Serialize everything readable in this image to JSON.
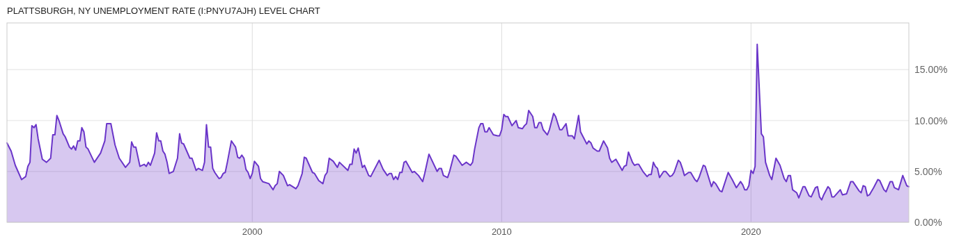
{
  "chart_data": {
    "type": "area",
    "title": "PLATTSBURGH, NY UNEMPLOYMENT RATE (I:PNYU7AJH) LEVEL CHART",
    "x": [
      "1990-03",
      "1990-05",
      "1990-07",
      "1990-10",
      "1990-12",
      "1991-01",
      "1991-02",
      "1991-03",
      "1991-04",
      "1991-05",
      "1991-06",
      "1991-08",
      "1991-10",
      "1991-12",
      "1992-01",
      "1992-02",
      "1992-03",
      "1992-04",
      "1992-06",
      "1992-07",
      "1992-09",
      "1992-10",
      "1992-11",
      "1992-12",
      "1993-01",
      "1993-02",
      "1993-03",
      "1993-04",
      "1993-05",
      "1993-06",
      "1993-09",
      "1993-12",
      "1994-02",
      "1994-03",
      "1994-05",
      "1994-07",
      "1994-09",
      "1994-12",
      "1995-02",
      "1995-03",
      "1995-04",
      "1995-05",
      "1995-07",
      "1995-09",
      "1995-10",
      "1995-11",
      "1995-12",
      "1996-02",
      "1996-03",
      "1996-04",
      "1996-05",
      "1996-06",
      "1996-07",
      "1996-08",
      "1996-09",
      "1996-11",
      "1997-01",
      "1997-02",
      "1997-03",
      "1997-04",
      "1997-07",
      "1997-08",
      "1997-10",
      "1997-11",
      "1998-01",
      "1998-02",
      "1998-03",
      "1998-04",
      "1998-05",
      "1998-06",
      "1998-07",
      "1998-09",
      "1998-10",
      "1998-11",
      "1998-12",
      "1999-01",
      "1999-03",
      "1999-04",
      "1999-05",
      "1999-06",
      "1999-07",
      "1999-08",
      "1999-09",
      "1999-10",
      "1999-11",
      "1999-12",
      "2000-01",
      "2000-02",
      "2000-04",
      "2000-05",
      "2000-06",
      "2000-09",
      "2000-10",
      "2000-11",
      "2000-12",
      "2001-01",
      "2001-02",
      "2001-04",
      "2001-06",
      "2001-07",
      "2001-10",
      "2001-11",
      "2002-01",
      "2002-02",
      "2002-03",
      "2002-06",
      "2002-07",
      "2002-09",
      "2002-11",
      "2002-12",
      "2003-01",
      "2003-02",
      "2003-04",
      "2003-06",
      "2003-07",
      "2003-11",
      "2003-12",
      "2004-01",
      "2004-02",
      "2004-03",
      "2004-04",
      "2004-06",
      "2004-07",
      "2004-09",
      "2004-10",
      "2005-02",
      "2005-04",
      "2005-06",
      "2005-07",
      "2005-08",
      "2005-09",
      "2005-10",
      "2005-11",
      "2005-12",
      "2006-01",
      "2006-02",
      "2006-03",
      "2006-06",
      "2006-07",
      "2006-09",
      "2006-11",
      "2006-12",
      "2007-02",
      "2007-06",
      "2007-07",
      "2007-08",
      "2007-09",
      "2007-11",
      "2007-12",
      "2008-02",
      "2008-03",
      "2008-06",
      "2008-08",
      "2008-10",
      "2008-11",
      "2008-12",
      "2009-02",
      "2009-03",
      "2009-04",
      "2009-05",
      "2009-06",
      "2009-07",
      "2009-09",
      "2009-11",
      "2009-12",
      "2010-01",
      "2010-02",
      "2010-03",
      "2010-04",
      "2010-06",
      "2010-08",
      "2010-09",
      "2010-11",
      "2010-12",
      "2011-01",
      "2011-02",
      "2011-04",
      "2011-05",
      "2011-06",
      "2011-07",
      "2011-08",
      "2011-09",
      "2011-11",
      "2011-12",
      "2012-02",
      "2012-03",
      "2012-05",
      "2012-06",
      "2012-08",
      "2012-09",
      "2012-11",
      "2012-12",
      "2013-02",
      "2013-03",
      "2013-06",
      "2013-07",
      "2013-08",
      "2013-09",
      "2013-11",
      "2013-12",
      "2014-02",
      "2014-04",
      "2014-05",
      "2014-06",
      "2014-08",
      "2014-11",
      "2014-12",
      "2015-01",
      "2015-02",
      "2015-04",
      "2015-05",
      "2015-06",
      "2015-07",
      "2015-09",
      "2015-11",
      "2015-12",
      "2016-01",
      "2016-02",
      "2016-03",
      "2016-04",
      "2016-05",
      "2016-07",
      "2016-08",
      "2016-10",
      "2016-11",
      "2016-12",
      "2017-02",
      "2017-03",
      "2017-04",
      "2017-05",
      "2017-07",
      "2017-08",
      "2017-10",
      "2017-11",
      "2017-12",
      "2018-02",
      "2018-03",
      "2018-06",
      "2018-07",
      "2018-08",
      "2018-10",
      "2018-11",
      "2019-02",
      "2019-04",
      "2019-06",
      "2019-08",
      "2019-09",
      "2019-10",
      "2019-11",
      "2019-12",
      "2020-01",
      "2020-02",
      "2020-03",
      "2020-04",
      "2020-06",
      "2020-07",
      "2020-08",
      "2020-10",
      "2020-11",
      "2021-01",
      "2021-03",
      "2021-05",
      "2021-06",
      "2021-07",
      "2021-08",
      "2021-09",
      "2021-11",
      "2021-12",
      "2022-02",
      "2022-03",
      "2022-05",
      "2022-06",
      "2022-08",
      "2022-09",
      "2022-10",
      "2022-11",
      "2022-12",
      "2023-02",
      "2023-03",
      "2023-04",
      "2023-05",
      "2023-08",
      "2023-09",
      "2023-11",
      "2024-01",
      "2024-02",
      "2024-05",
      "2024-06",
      "2024-07",
      "2024-08",
      "2024-09",
      "2024-10",
      "2024-12",
      "2025-02",
      "2025-03",
      "2025-05",
      "2025-06",
      "2025-08",
      "2025-09",
      "2025-10",
      "2025-12",
      "2026-02",
      "2026-04",
      "2026-05"
    ],
    "series": [
      {
        "color": "#6a35c9",
        "values": [
          7.8,
          7.0,
          5.6,
          4.2,
          4.5,
          5.5,
          5.9,
          9.5,
          9.3,
          9.6,
          8.2,
          6.2,
          5.9,
          6.3,
          8.6,
          8.6,
          10.5,
          10.0,
          8.7,
          8.4,
          7.4,
          7.2,
          7.5,
          7.1,
          8.0,
          8.0,
          9.3,
          8.9,
          7.4,
          7.2,
          5.9,
          6.8,
          8.0,
          9.7,
          9.7,
          7.6,
          6.3,
          5.4,
          5.9,
          7.9,
          7.4,
          7.4,
          5.5,
          5.7,
          5.5,
          5.9,
          5.6,
          6.8,
          8.8,
          8.0,
          8.0,
          7.0,
          6.7,
          5.9,
          4.8,
          5.0,
          6.3,
          8.7,
          7.8,
          7.7,
          6.3,
          6.3,
          5.1,
          5.3,
          5.1,
          5.9,
          9.6,
          7.4,
          7.4,
          5.3,
          4.9,
          4.3,
          4.4,
          4.8,
          4.9,
          5.9,
          8.0,
          7.7,
          7.4,
          6.4,
          6.3,
          6.6,
          6.3,
          5.2,
          4.9,
          4.3,
          4.8,
          6.0,
          5.5,
          4.3,
          4.0,
          3.8,
          3.5,
          3.2,
          3.6,
          3.8,
          5.0,
          4.6,
          3.6,
          3.7,
          3.3,
          3.6,
          4.8,
          6.4,
          6.3,
          4.9,
          4.8,
          4.1,
          3.8,
          4.6,
          4.9,
          6.3,
          6.0,
          5.4,
          5.9,
          5.1,
          5.7,
          5.7,
          7.2,
          6.8,
          7.3,
          5.4,
          5.6,
          4.6,
          4.5,
          6.1,
          5.2,
          4.6,
          4.8,
          4.8,
          4.2,
          4.5,
          4.2,
          4.9,
          4.9,
          5.9,
          6.0,
          4.9,
          5.0,
          4.6,
          4.0,
          4.8,
          6.7,
          5.0,
          5.3,
          5.3,
          4.6,
          4.4,
          5.0,
          6.6,
          6.5,
          5.6,
          5.9,
          5.6,
          5.9,
          7.2,
          9.3,
          9.7,
          9.7,
          8.9,
          8.9,
          9.3,
          8.6,
          8.5,
          8.5,
          9.1,
          10.6,
          10.4,
          10.4,
          9.5,
          10.0,
          9.3,
          9.2,
          9.5,
          9.7,
          11.0,
          10.4,
          9.3,
          9.3,
          9.8,
          9.8,
          9.1,
          8.6,
          9.1,
          10.7,
          10.4,
          9.1,
          9.1,
          9.7,
          8.5,
          8.5,
          8.2,
          10.5,
          8.9,
          7.7,
          8.0,
          7.8,
          7.3,
          7.0,
          7.0,
          8.0,
          7.3,
          6.3,
          5.9,
          6.2,
          5.1,
          5.5,
          5.6,
          6.9,
          5.9,
          5.6,
          5.7,
          5.7,
          5.0,
          4.5,
          4.7,
          4.7,
          5.9,
          5.5,
          5.3,
          4.4,
          5.0,
          5.0,
          4.5,
          4.6,
          4.9,
          6.1,
          5.9,
          5.3,
          4.6,
          4.9,
          4.9,
          4.2,
          4.0,
          4.4,
          5.6,
          5.5,
          3.5,
          4.0,
          3.8,
          3.1,
          3.0,
          4.9,
          4.2,
          3.4,
          4.0,
          3.7,
          3.2,
          3.2,
          3.6,
          5.1,
          4.8,
          5.5,
          17.5,
          8.7,
          8.4,
          5.9,
          4.6,
          4.2,
          6.3,
          5.6,
          4.3,
          4.0,
          4.6,
          4.6,
          3.2,
          2.9,
          2.4,
          3.5,
          3.5,
          2.6,
          2.5,
          3.4,
          3.5,
          2.5,
          2.2,
          2.7,
          3.5,
          3.3,
          2.5,
          2.5,
          3.2,
          2.7,
          2.8,
          4.0,
          4.0,
          3.1,
          2.9,
          3.6,
          3.5,
          2.6,
          2.7,
          3.4,
          4.2,
          4.1,
          3.2,
          3.0,
          4.0,
          4.0,
          3.4,
          3.2,
          4.6,
          3.6,
          3.5
        ]
      }
    ],
    "xlim": [
      "1990-03",
      "2026-05"
    ],
    "xticks": [
      "2000",
      "2010",
      "2020"
    ],
    "ylim": [
      0,
      19.6
    ],
    "yticks": [
      {
        "value": 0,
        "label": "0.00%"
      },
      {
        "value": 5,
        "label": "5.00%"
      },
      {
        "value": 10,
        "label": "10.00%"
      },
      {
        "value": 15,
        "label": "15.00%"
      }
    ],
    "grid": true
  }
}
